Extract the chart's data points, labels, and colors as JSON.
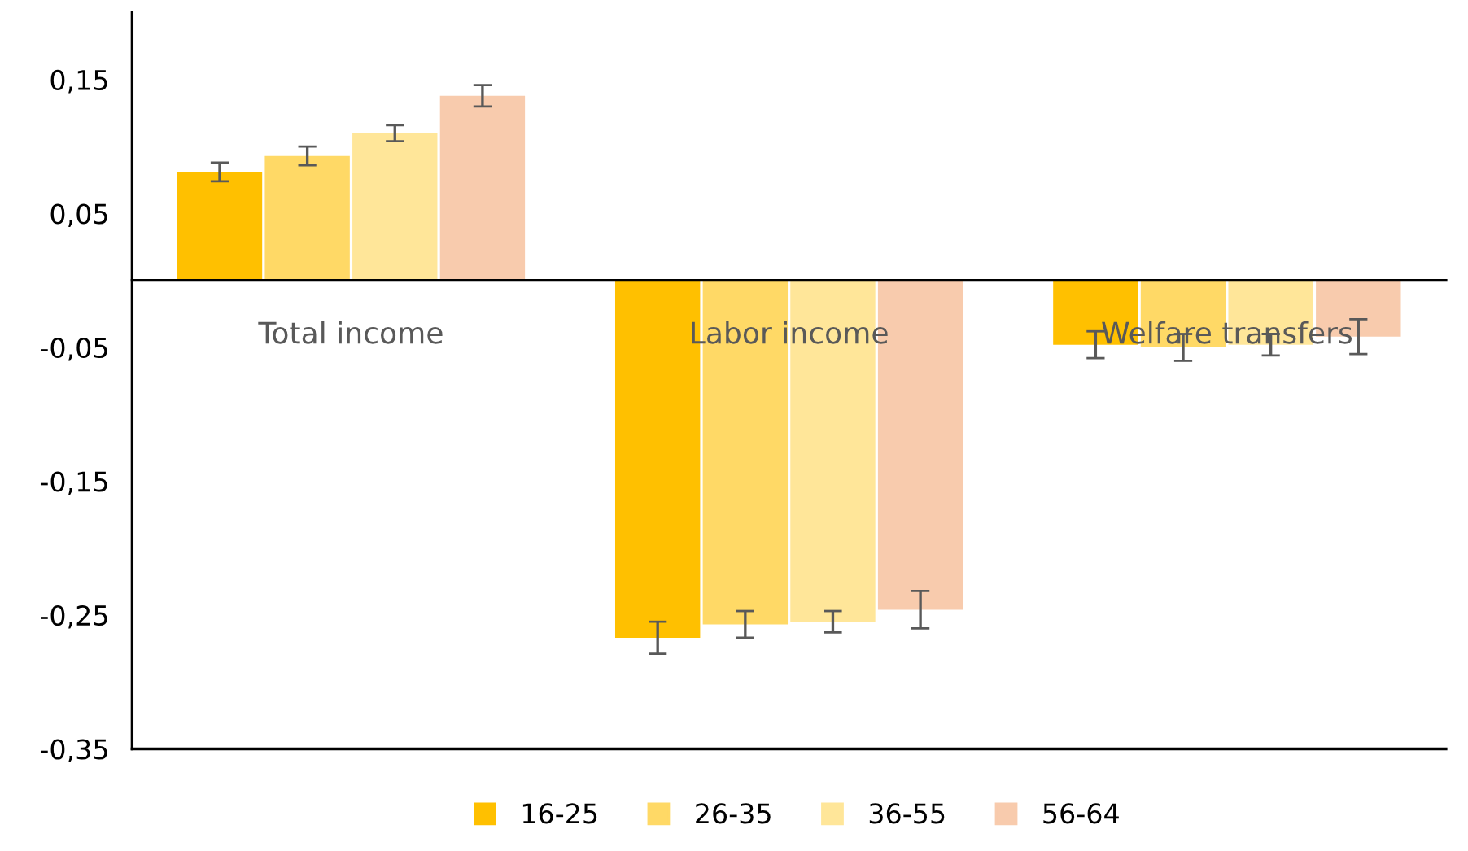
{
  "chart_data": {
    "type": "bar",
    "categories": [
      "Total income",
      "Labor income",
      "Welfare transfers"
    ],
    "series": [
      {
        "name": "16-25",
        "color": "#ffc000",
        "values": [
          0.081,
          -0.267,
          -0.048
        ],
        "errors": [
          0.007,
          0.012,
          0.01
        ]
      },
      {
        "name": "26-35",
        "color": "#ffd966",
        "values": [
          0.093,
          -0.257,
          -0.05
        ],
        "errors": [
          0.007,
          0.01,
          0.01
        ]
      },
      {
        "name": "36-55",
        "color": "#ffe699",
        "values": [
          0.11,
          -0.255,
          -0.048
        ],
        "errors": [
          0.006,
          0.008,
          0.008
        ]
      },
      {
        "name": "56-64",
        "color": "#f8cbad",
        "values": [
          0.138,
          -0.246,
          -0.042
        ],
        "errors": [
          0.008,
          0.014,
          0.013
        ]
      }
    ],
    "ylim": [
      -0.35,
      0.2
    ],
    "yticks": [
      {
        "value": -0.35,
        "label": "-0,35"
      },
      {
        "value": -0.25,
        "label": "-0,25"
      },
      {
        "value": -0.15,
        "label": "-0,15"
      },
      {
        "value": -0.05,
        "label": "-0,05"
      },
      {
        "value": 0.05,
        "label": "0,05"
      },
      {
        "value": 0.15,
        "label": "0,15"
      }
    ],
    "grid": false,
    "legend": "bottom"
  }
}
